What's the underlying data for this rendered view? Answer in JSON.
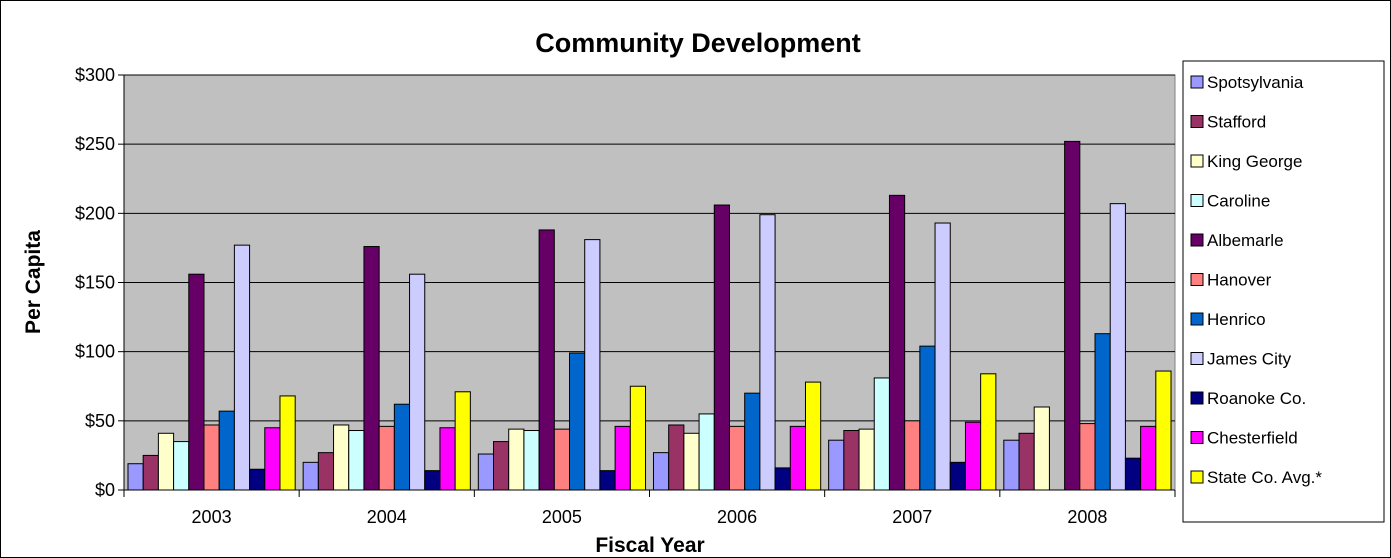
{
  "chart_data": {
    "type": "bar",
    "title": "Community Development",
    "xlabel": "Fiscal Year",
    "ylabel": "Per Capita",
    "ylim": [
      0,
      300
    ],
    "yticks": [
      "$0",
      "$50",
      "$100",
      "$150",
      "$200",
      "$250",
      "$300"
    ],
    "grid": true,
    "legend_position": "right",
    "plot_background": "#c0c0c0",
    "categories": [
      "2003",
      "2004",
      "2005",
      "2006",
      "2007",
      "2008"
    ],
    "series": [
      {
        "name": "Spotsylvania",
        "color": "#9999ff",
        "values": [
          19,
          20,
          26,
          27,
          36,
          36
        ]
      },
      {
        "name": "Stafford",
        "color": "#993366",
        "values": [
          25,
          27,
          35,
          47,
          43,
          41
        ]
      },
      {
        "name": "King George",
        "color": "#ffffcc",
        "values": [
          41,
          47,
          44,
          41,
          44,
          60
        ]
      },
      {
        "name": "Caroline",
        "color": "#ccffff",
        "values": [
          35,
          43,
          43,
          55,
          81,
          null
        ]
      },
      {
        "name": "Albemarle",
        "color": "#660066",
        "values": [
          156,
          176,
          188,
          206,
          213,
          252
        ]
      },
      {
        "name": "Hanover",
        "color": "#ff8080",
        "values": [
          47,
          46,
          44,
          46,
          50,
          48
        ]
      },
      {
        "name": "Henrico",
        "color": "#0066cc",
        "values": [
          57,
          62,
          99,
          70,
          104,
          113
        ]
      },
      {
        "name": "James City",
        "color": "#ccccff",
        "values": [
          177,
          156,
          181,
          199,
          193,
          207
        ]
      },
      {
        "name": "Roanoke Co.",
        "color": "#000080",
        "values": [
          15,
          14,
          14,
          16,
          20,
          23
        ]
      },
      {
        "name": "Chesterfield",
        "color": "#ff00ff",
        "values": [
          45,
          45,
          46,
          46,
          49,
          46
        ]
      },
      {
        "name": "State Co. Avg.*",
        "color": "#ffff00",
        "values": [
          68,
          71,
          75,
          78,
          84,
          86
        ]
      }
    ]
  }
}
